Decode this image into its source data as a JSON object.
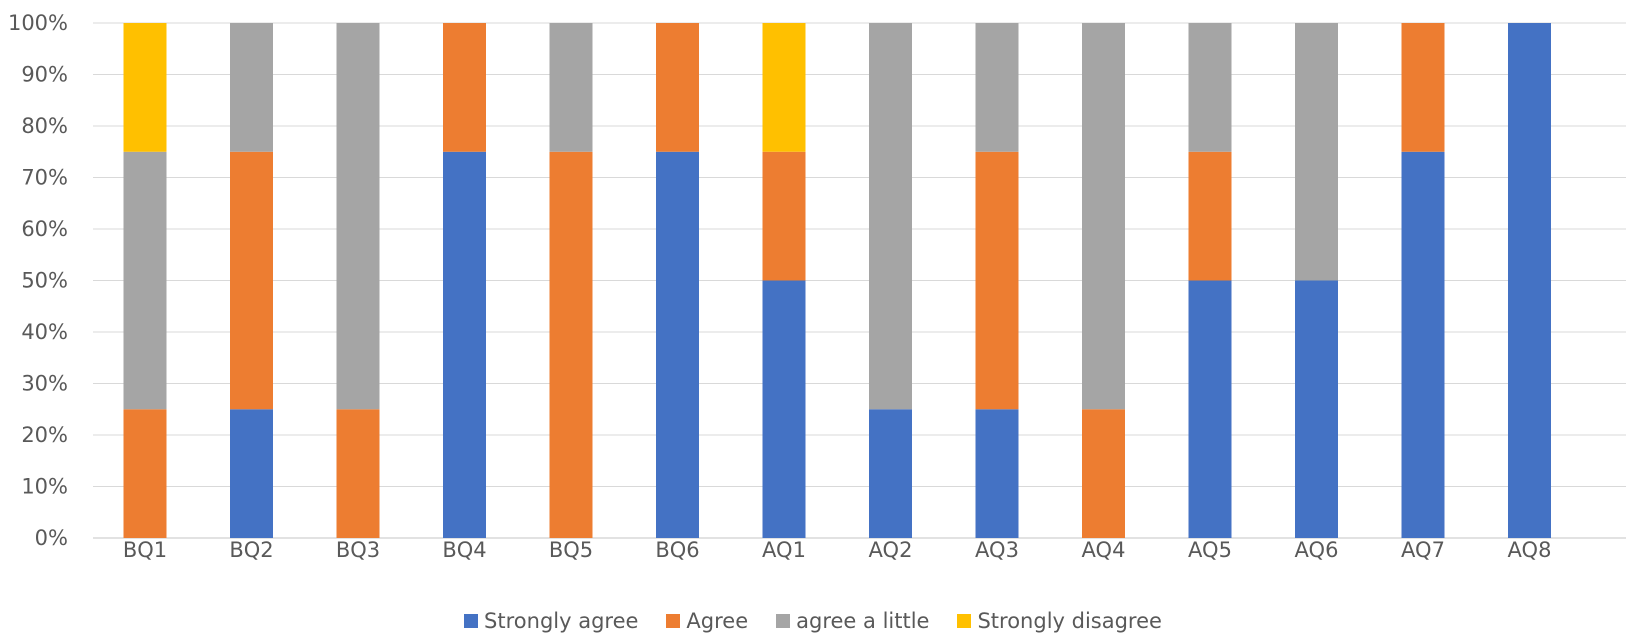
{
  "chart_data": {
    "type": "bar",
    "stacked": true,
    "categories": [
      "BQ1",
      "BQ2",
      "BQ3",
      "BQ4",
      "BQ5",
      "BQ6",
      "AQ1",
      "AQ2",
      "AQ3",
      "AQ4",
      "AQ5",
      "AQ6",
      "AQ7",
      "AQ8"
    ],
    "series": [
      {
        "name": "Strongly agree",
        "color": "#4472C4",
        "values": [
          0,
          25,
          0,
          75,
          0,
          75,
          50,
          25,
          25,
          0,
          50,
          50,
          75,
          100
        ]
      },
      {
        "name": "Agree",
        "color": "#ED7D31",
        "values": [
          25,
          50,
          25,
          25,
          75,
          25,
          25,
          0,
          50,
          25,
          25,
          0,
          25,
          0
        ]
      },
      {
        "name": "agree a little",
        "color": "#A5A5A5",
        "values": [
          50,
          25,
          75,
          0,
          25,
          0,
          0,
          75,
          25,
          75,
          25,
          50,
          0,
          0
        ]
      },
      {
        "name": "Strongly disagree",
        "color": "#FFC000",
        "values": [
          25,
          0,
          0,
          0,
          0,
          0,
          25,
          0,
          0,
          0,
          0,
          0,
          0,
          0
        ]
      }
    ],
    "ylim": [
      0,
      100
    ],
    "yticks": [
      "0%",
      "10%",
      "20%",
      "30%",
      "40%",
      "50%",
      "60%",
      "70%",
      "80%",
      "90%",
      "100%"
    ],
    "grid": true,
    "legend_position": "bottom",
    "gridline_color": "#D9D9D9"
  }
}
